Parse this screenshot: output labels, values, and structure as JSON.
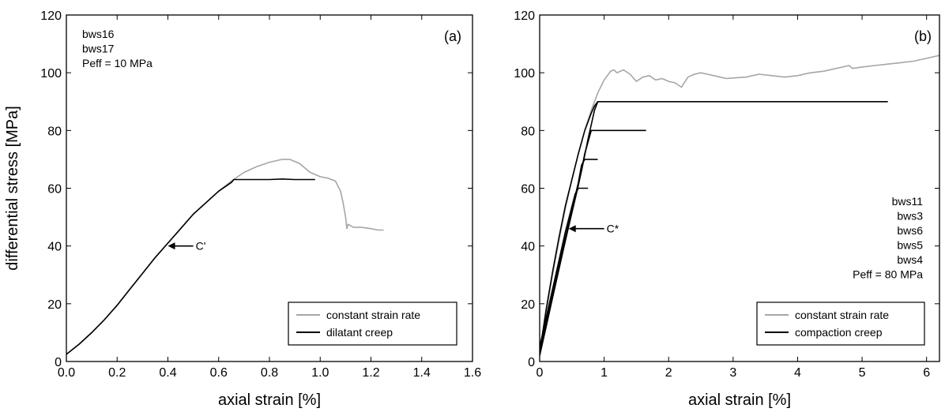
{
  "colors": {
    "constant_strain_rate": "#a6a6a6",
    "creep": "#000000",
    "frame": "#000000",
    "background": "#ffffff"
  },
  "chart_data": [
    {
      "type": "line",
      "panel_label": "(a)",
      "xlabel": "axial strain [%]",
      "ylabel": "differential stress [MPa]",
      "xlim": [
        0,
        1.6
      ],
      "ylim": [
        0,
        120
      ],
      "xticks": [
        0.0,
        0.2,
        0.4,
        0.6,
        0.8,
        1.0,
        1.2,
        1.4,
        1.6
      ],
      "xtick_labels": [
        "0.0",
        "0.2",
        "0.4",
        "0.6",
        "0.8",
        "1.0",
        "1.2",
        "1.4",
        "1.6"
      ],
      "yticks": [
        0,
        20,
        40,
        60,
        80,
        100,
        120
      ],
      "ytick_labels": [
        "0",
        "20",
        "40",
        "60",
        "80",
        "100",
        "120"
      ],
      "grid": false,
      "notes": [
        "bws16",
        "bws17",
        "Peff = 10 MPa"
      ],
      "notes_position": "top-left",
      "annotation": {
        "text": "C'",
        "x": 0.4,
        "y": 40,
        "arrow_from_x": 0.5
      },
      "legend": {
        "position": "bottom-right",
        "entries": [
          "constant strain rate",
          "dilatant creep"
        ]
      },
      "series": [
        {
          "name": "constant strain rate",
          "color": "#a6a6a6",
          "x": [
            0.0,
            0.05,
            0.1,
            0.15,
            0.2,
            0.25,
            0.3,
            0.35,
            0.4,
            0.45,
            0.5,
            0.55,
            0.6,
            0.65,
            0.7,
            0.75,
            0.8,
            0.85,
            0.88,
            0.92,
            0.96,
            1.0,
            1.03,
            1.06,
            1.08,
            1.09,
            1.1,
            1.105,
            1.11,
            1.13,
            1.16,
            1.2,
            1.23,
            1.25
          ],
          "y": [
            2.5,
            6,
            10,
            14.5,
            19.5,
            25,
            30.5,
            36,
            41,
            46,
            51,
            55,
            59,
            62.5,
            65.5,
            67.5,
            69,
            70,
            70,
            68.5,
            65.5,
            64,
            63.5,
            62.5,
            59,
            55,
            50,
            46,
            47.5,
            46.5,
            46.5,
            46,
            45.5,
            45.5
          ]
        },
        {
          "name": "dilatant creep",
          "color": "#000000",
          "x": [
            0.0,
            0.05,
            0.1,
            0.15,
            0.2,
            0.25,
            0.3,
            0.35,
            0.4,
            0.45,
            0.5,
            0.55,
            0.6,
            0.65,
            0.66,
            0.7,
            0.75,
            0.8,
            0.85,
            0.9,
            0.95,
            0.98
          ],
          "y": [
            2.5,
            6,
            10,
            14.5,
            19.5,
            25,
            30.5,
            36,
            41,
            46,
            51,
            55,
            59,
            62,
            63,
            63,
            63,
            63,
            63.2,
            63,
            63,
            63
          ]
        }
      ]
    },
    {
      "type": "line",
      "panel_label": "(b)",
      "xlabel": "axial strain [%]",
      "ylabel": "",
      "xlim": [
        0,
        6.2
      ],
      "ylim": [
        0,
        120
      ],
      "xticks": [
        0,
        1,
        2,
        3,
        4,
        5,
        6
      ],
      "xtick_labels": [
        "0",
        "1",
        "2",
        "3",
        "4",
        "5",
        "6"
      ],
      "yticks": [
        0,
        20,
        40,
        60,
        80,
        100,
        120
      ],
      "ytick_labels": [
        "0",
        "20",
        "40",
        "60",
        "80",
        "100",
        "120"
      ],
      "grid": false,
      "notes": [
        "bws11",
        "bws3",
        "bws6",
        "bws5",
        "bws4",
        "Peff = 80 MPa"
      ],
      "notes_position": "right",
      "annotation": {
        "text": "C*",
        "x": 0.45,
        "y": 46,
        "arrow_from_x": 1.0
      },
      "legend": {
        "position": "bottom-right",
        "entries": [
          "constant strain rate",
          "compaction creep"
        ]
      },
      "series": [
        {
          "name": "constant strain rate",
          "color": "#a6a6a6",
          "x": [
            0.0,
            0.1,
            0.2,
            0.3,
            0.4,
            0.5,
            0.6,
            0.7,
            0.8,
            0.9,
            1.0,
            1.1,
            1.15,
            1.2,
            1.3,
            1.4,
            1.5,
            1.6,
            1.7,
            1.8,
            1.9,
            2.0,
            2.1,
            2.2,
            2.3,
            2.4,
            2.5,
            2.6,
            2.7,
            2.8,
            2.9,
            3.0,
            3.2,
            3.4,
            3.6,
            3.8,
            4.0,
            4.2,
            4.4,
            4.6,
            4.8,
            4.85,
            5.0,
            5.2,
            5.4,
            5.6,
            5.8,
            6.0,
            6.2
          ],
          "y": [
            3,
            17,
            30,
            42,
            53,
            63,
            72,
            80,
            87,
            93,
            97.5,
            100.5,
            101,
            100,
            101,
            99.5,
            97,
            98.5,
            99,
            97.5,
            98,
            97,
            96.5,
            95,
            98.5,
            99.5,
            100,
            99.5,
            99,
            98.5,
            98,
            98.2,
            98.5,
            99.5,
            99,
            98.5,
            99,
            100,
            100.5,
            101.5,
            102.5,
            101.5,
            102,
            102.5,
            103,
            103.5,
            104,
            105,
            106
          ]
        },
        {
          "name": "compaction creep",
          "color": "#000000",
          "x": [
            0.0,
            0.1,
            0.2,
            0.3,
            0.4,
            0.5,
            0.6,
            0.7,
            0.8,
            0.85,
            0.9,
            1.5,
            2.0,
            3.0,
            4.0,
            5.0,
            5.4
          ],
          "y": [
            3,
            18,
            31,
            43,
            54,
            63,
            72,
            80,
            86,
            88.5,
            90,
            90,
            90,
            90,
            90,
            90,
            90
          ]
        },
        {
          "name": "",
          "color": "#000000",
          "x": [
            0.0,
            0.2,
            0.4,
            0.55,
            0.6,
            0.75
          ],
          "y": [
            5,
            25,
            45,
            58,
            60,
            60
          ]
        },
        {
          "name": "",
          "color": "#000000",
          "x": [
            0.0,
            0.2,
            0.4,
            0.6,
            0.65,
            0.7,
            0.9
          ],
          "y": [
            5,
            24,
            43,
            62,
            68,
            70,
            70
          ]
        },
        {
          "name": "",
          "color": "#000000",
          "x": [
            0.0,
            0.2,
            0.4,
            0.6,
            0.7,
            0.8,
            1.0,
            1.3,
            1.65
          ],
          "y": [
            4,
            23,
            42,
            61,
            72,
            80,
            80,
            80,
            80
          ]
        },
        {
          "name": "",
          "color": "#000000",
          "x": [
            0.0,
            0.1,
            0.2,
            0.35,
            0.5,
            0.65,
            0.75,
            0.85,
            0.9
          ],
          "y": [
            2,
            12,
            22,
            37,
            52,
            66,
            77,
            87,
            90
          ]
        }
      ]
    }
  ]
}
